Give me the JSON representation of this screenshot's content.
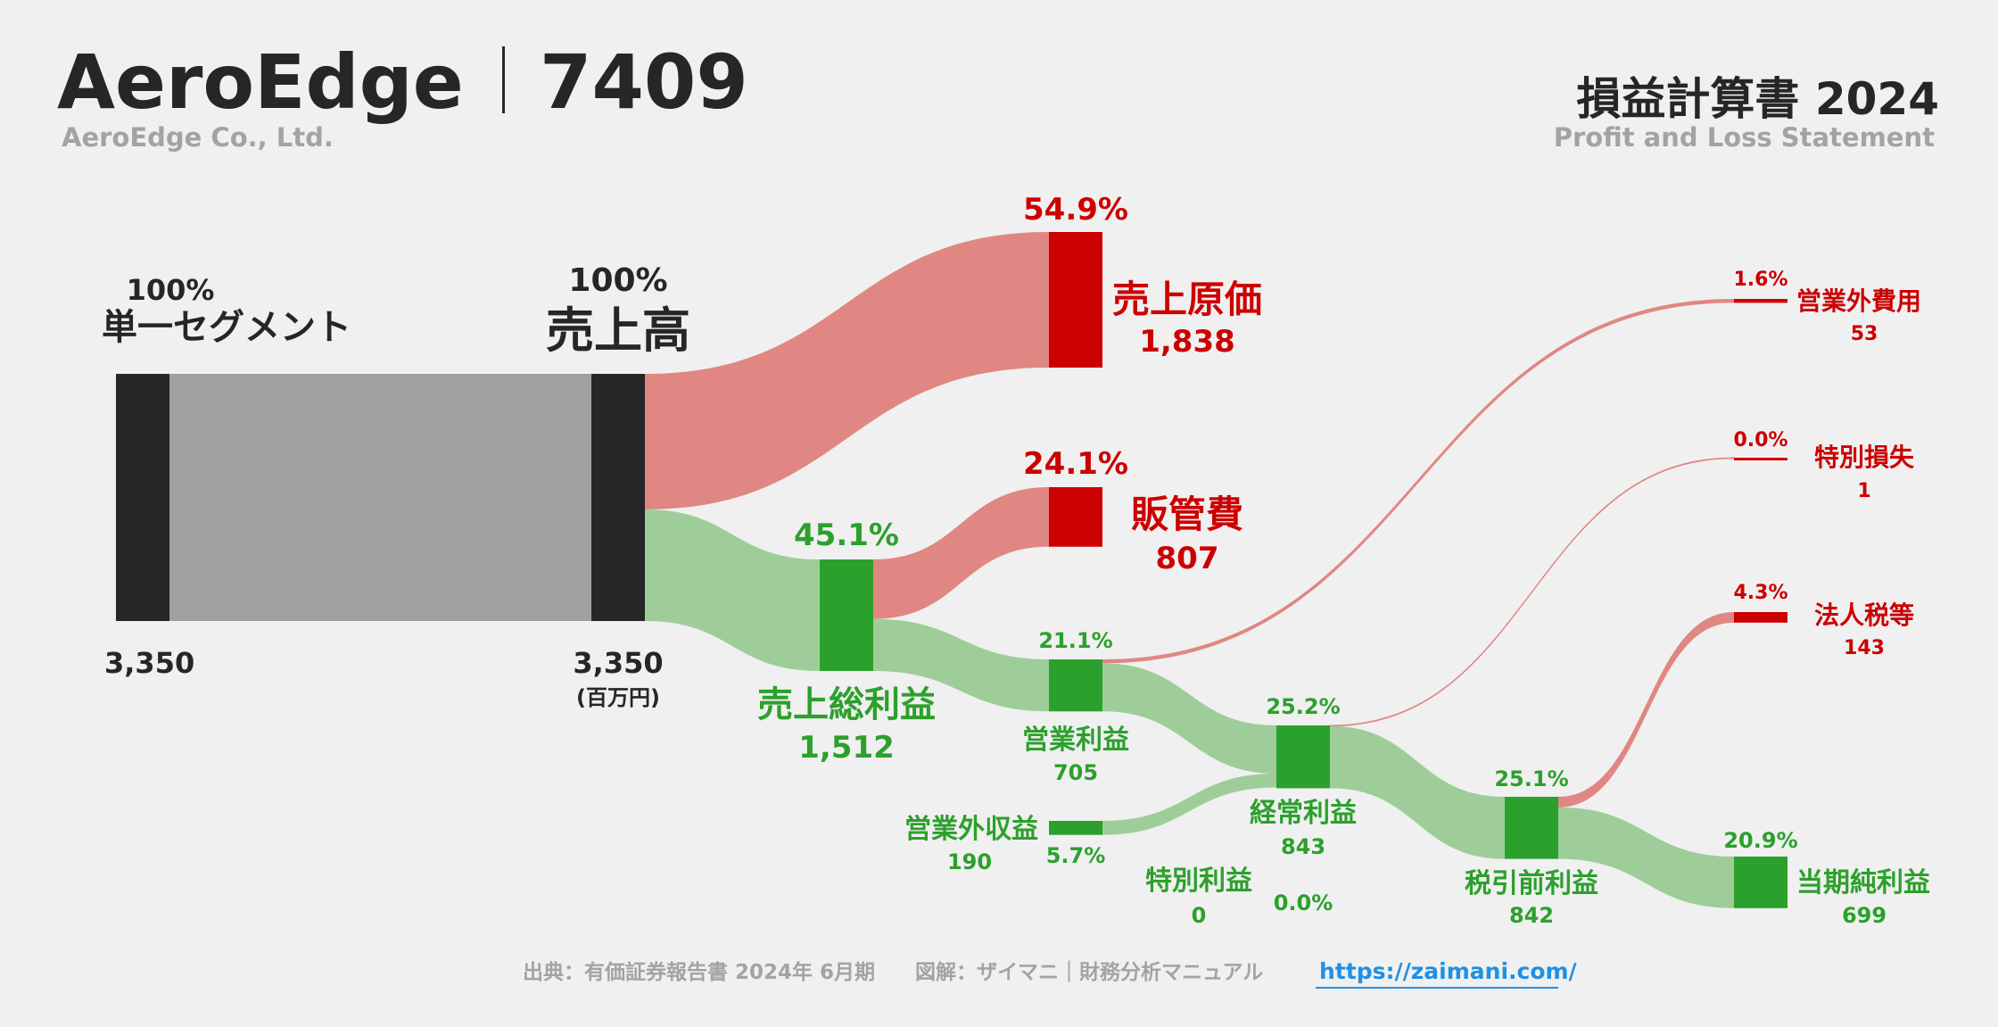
{
  "header": {
    "company": "AeroEdge",
    "code": "7409",
    "company_en": "AeroEdge Co., Ltd.",
    "statement_title": "損益計算書 2024",
    "statement_subtitle": "Profit and Loss Statement"
  },
  "unit": "(百万円)",
  "colors": {
    "background": "#f0f0f0",
    "dark": "#262626",
    "neutral_flow": "#a0a0a0",
    "cost": "#cc0000",
    "cost_flow": "#e08783",
    "profit": "#2ca02c",
    "profit_flow": "#9ecd9a",
    "link": "#1e90e6"
  },
  "nodes": {
    "segment": {
      "label": "単一セグメント",
      "value": "3,350",
      "pct": "100%"
    },
    "revenue": {
      "label": "売上高",
      "value": "3,350",
      "pct": "100%"
    },
    "cogs": {
      "label": "売上原価",
      "value": "1,838",
      "pct": "54.9%"
    },
    "gross": {
      "label": "売上総利益",
      "value": "1,512",
      "pct": "45.1%"
    },
    "sga": {
      "label": "販管費",
      "value": "807",
      "pct": "24.1%"
    },
    "op": {
      "label": "営業利益",
      "value": "705",
      "pct": "21.1%"
    },
    "nonop_inc": {
      "label": "営業外収益",
      "value": "190",
      "pct": "5.7%"
    },
    "nonop_exp": {
      "label": "営業外費用",
      "value": "53",
      "pct": "1.6%"
    },
    "ordinary": {
      "label": "経常利益",
      "value": "843",
      "pct": "25.2%"
    },
    "sp_inc": {
      "label": "特別利益",
      "value": "0",
      "pct": "0.0%"
    },
    "sp_loss": {
      "label": "特別損失",
      "value": "1",
      "pct": "0.0%"
    },
    "pretax": {
      "label": "税引前利益",
      "value": "842",
      "pct": "25.1%"
    },
    "tax": {
      "label": "法人税等",
      "value": "143",
      "pct": "4.3%"
    },
    "net": {
      "label": "当期純利益",
      "value": "699",
      "pct": "20.9%"
    }
  },
  "flows": [
    {
      "from": "segment",
      "to": "revenue",
      "value": 3350,
      "kind": "neutral"
    },
    {
      "from": "revenue",
      "to": "cogs",
      "value": 1838,
      "kind": "cost"
    },
    {
      "from": "revenue",
      "to": "gross",
      "value": 1512,
      "kind": "profit"
    },
    {
      "from": "gross",
      "to": "sga",
      "value": 807,
      "kind": "cost"
    },
    {
      "from": "gross",
      "to": "op",
      "value": 705,
      "kind": "profit"
    },
    {
      "from": "op",
      "to": "nonop_exp",
      "value": 53,
      "kind": "cost"
    },
    {
      "from": "op",
      "to": "ordinary",
      "value": 652,
      "kind": "profit"
    },
    {
      "from": "nonop_inc",
      "to": "ordinary",
      "value": 190,
      "kind": "profit"
    },
    {
      "from": "ordinary",
      "to": "sp_loss",
      "value": 1,
      "kind": "cost"
    },
    {
      "from": "ordinary",
      "to": "pretax",
      "value": 842,
      "kind": "profit"
    },
    {
      "from": "pretax",
      "to": "tax",
      "value": 143,
      "kind": "cost"
    },
    {
      "from": "pretax",
      "to": "net",
      "value": 699,
      "kind": "profit"
    }
  ],
  "footer": {
    "source": "出典：有価証券報告書 2024年 6月期",
    "credit": "図解：ザイマニ｜財務分析マニュアル",
    "link": "https://zaimani.com/"
  }
}
